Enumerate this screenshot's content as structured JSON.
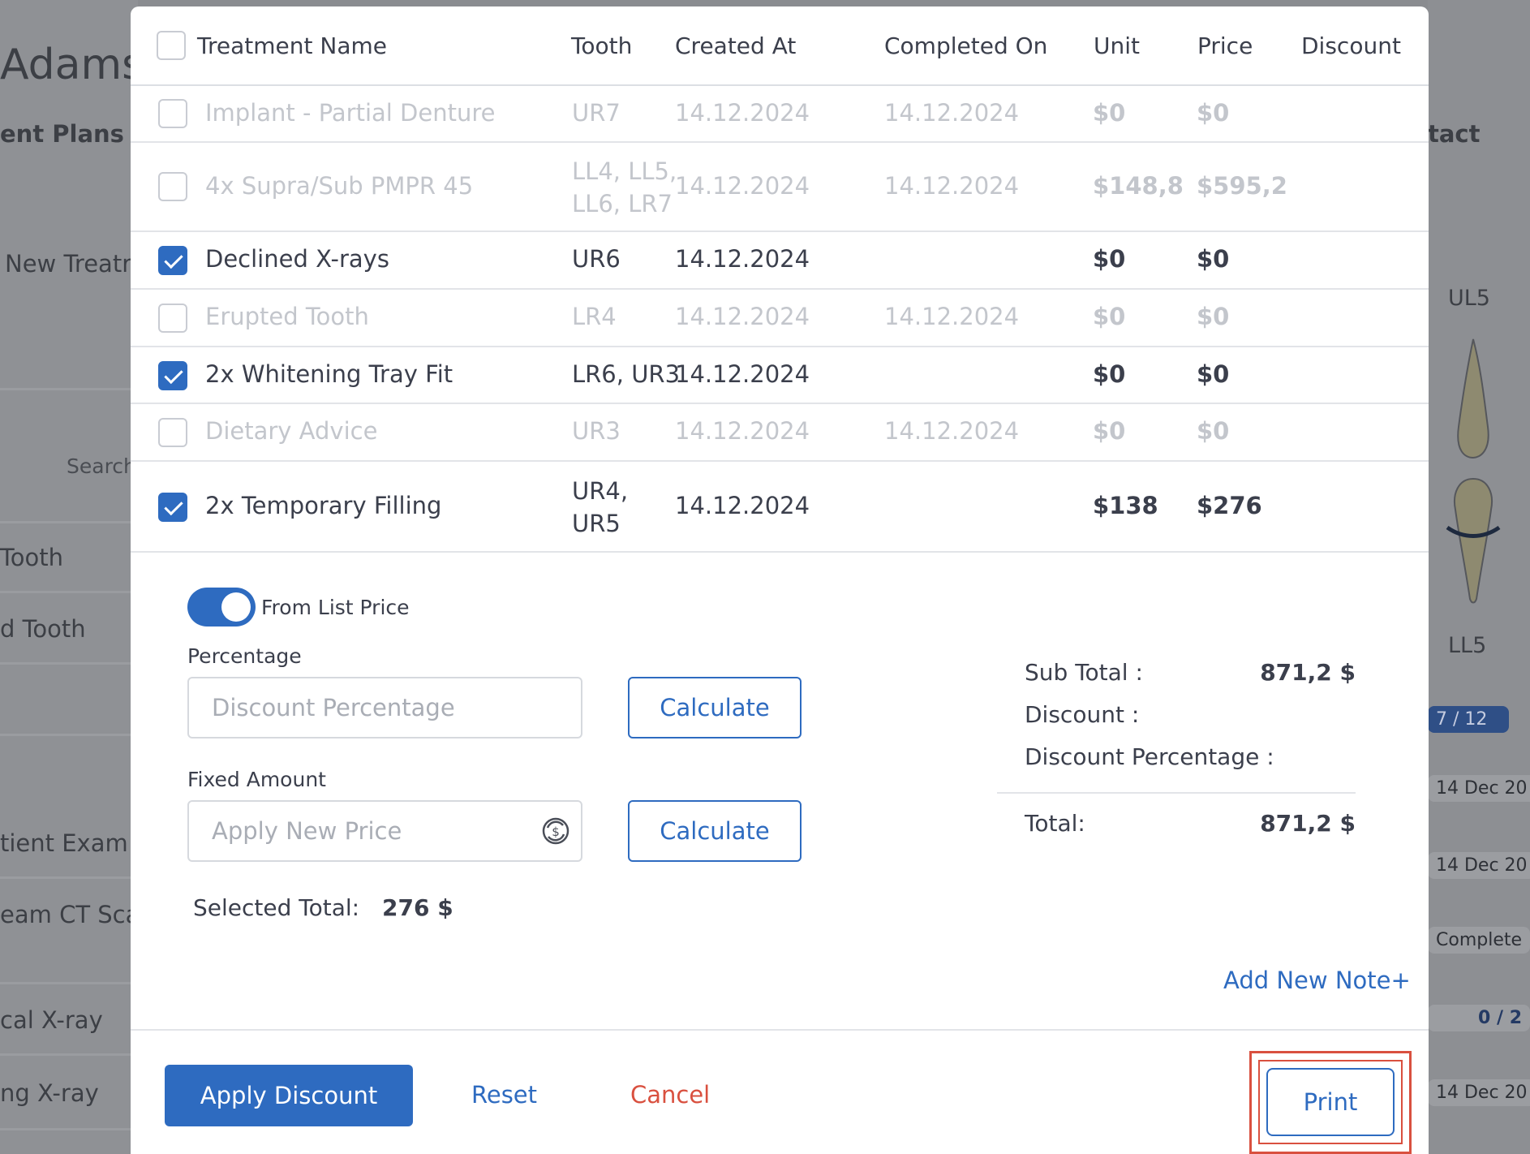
{
  "background": {
    "patient_name_fragment": "Adams",
    "tab_fragment": "ent Plans",
    "contact_fragment": "tact",
    "new_treatment_fragment": "New Treatr",
    "search_fragment": "Search",
    "list_items": [
      "Tooth",
      "d Tooth",
      "tient Exam",
      "eam CT Sca",
      "cal X-ray",
      "ng X-ray"
    ],
    "tooth_labels": {
      "upper": "UL5",
      "lower": "LL5"
    },
    "progress_badge": "7 / 12",
    "dates": [
      "14 Dec 20",
      "14 Dec 20",
      "14 Dec 20"
    ],
    "complete_badge": "Complete",
    "count_badge": "0 / 2"
  },
  "table": {
    "headers": {
      "name": "Treatment Name",
      "tooth": "Tooth",
      "created": "Created At",
      "completed": "Completed On",
      "unit": "Unit",
      "price": "Price",
      "discount": "Discount"
    },
    "rows": [
      {
        "name": "Implant - Partial Denture",
        "tooth": "UR7",
        "created": "14.12.2024",
        "completed": "14.12.2024",
        "unit": "$0",
        "price": "$0",
        "checked": false,
        "dim": true
      },
      {
        "name": "4x Supra/Sub PMPR 45",
        "tooth": "LL4, LL5, LL6, LR7",
        "created": "14.12.2024",
        "completed": "14.12.2024",
        "unit": "$148,8",
        "price": "$595,2",
        "checked": false,
        "dim": true
      },
      {
        "name": "Declined X-rays",
        "tooth": "UR6",
        "created": "14.12.2024",
        "completed": "",
        "unit": "$0",
        "price": "$0",
        "checked": true,
        "dim": false
      },
      {
        "name": "Erupted Tooth",
        "tooth": "LR4",
        "created": "14.12.2024",
        "completed": "14.12.2024",
        "unit": "$0",
        "price": "$0",
        "checked": false,
        "dim": true
      },
      {
        "name": "2x Whitening Tray Fit",
        "tooth": "LR6, UR3",
        "created": "14.12.2024",
        "completed": "",
        "unit": "$0",
        "price": "$0",
        "checked": true,
        "dim": false
      },
      {
        "name": "Dietary Advice",
        "tooth": "UR3",
        "created": "14.12.2024",
        "completed": "14.12.2024",
        "unit": "$0",
        "price": "$0",
        "checked": false,
        "dim": true
      },
      {
        "name": "2x Temporary Filling",
        "tooth": "UR4, UR5",
        "created": "14.12.2024",
        "completed": "",
        "unit": "$138",
        "price": "$276",
        "checked": true,
        "dim": false
      }
    ]
  },
  "discount_form": {
    "toggle_label": "From List Price",
    "toggle_on": true,
    "percentage_label": "Percentage",
    "percentage_placeholder": "Discount Percentage",
    "fixed_label": "Fixed Amount",
    "fixed_placeholder": "Apply New Price",
    "calculate_label": "Calculate",
    "selected_total_label": "Selected Total:",
    "selected_total_value": "276 $"
  },
  "summary": {
    "subtotal_label": "Sub Total :",
    "subtotal_value": "871,2 $",
    "discount_label": "Discount :",
    "discount_percentage_label": "Discount Percentage :",
    "total_label": "Total:",
    "total_value": "871,2 $"
  },
  "add_note_label": "Add New Note+",
  "footer": {
    "apply_label": "Apply Discount",
    "reset_label": "Reset",
    "cancel_label": "Cancel",
    "print_label": "Print"
  },
  "colors": {
    "accent": "#2e6bc0",
    "danger": "#d9503f",
    "highlight": "#d9503f"
  }
}
